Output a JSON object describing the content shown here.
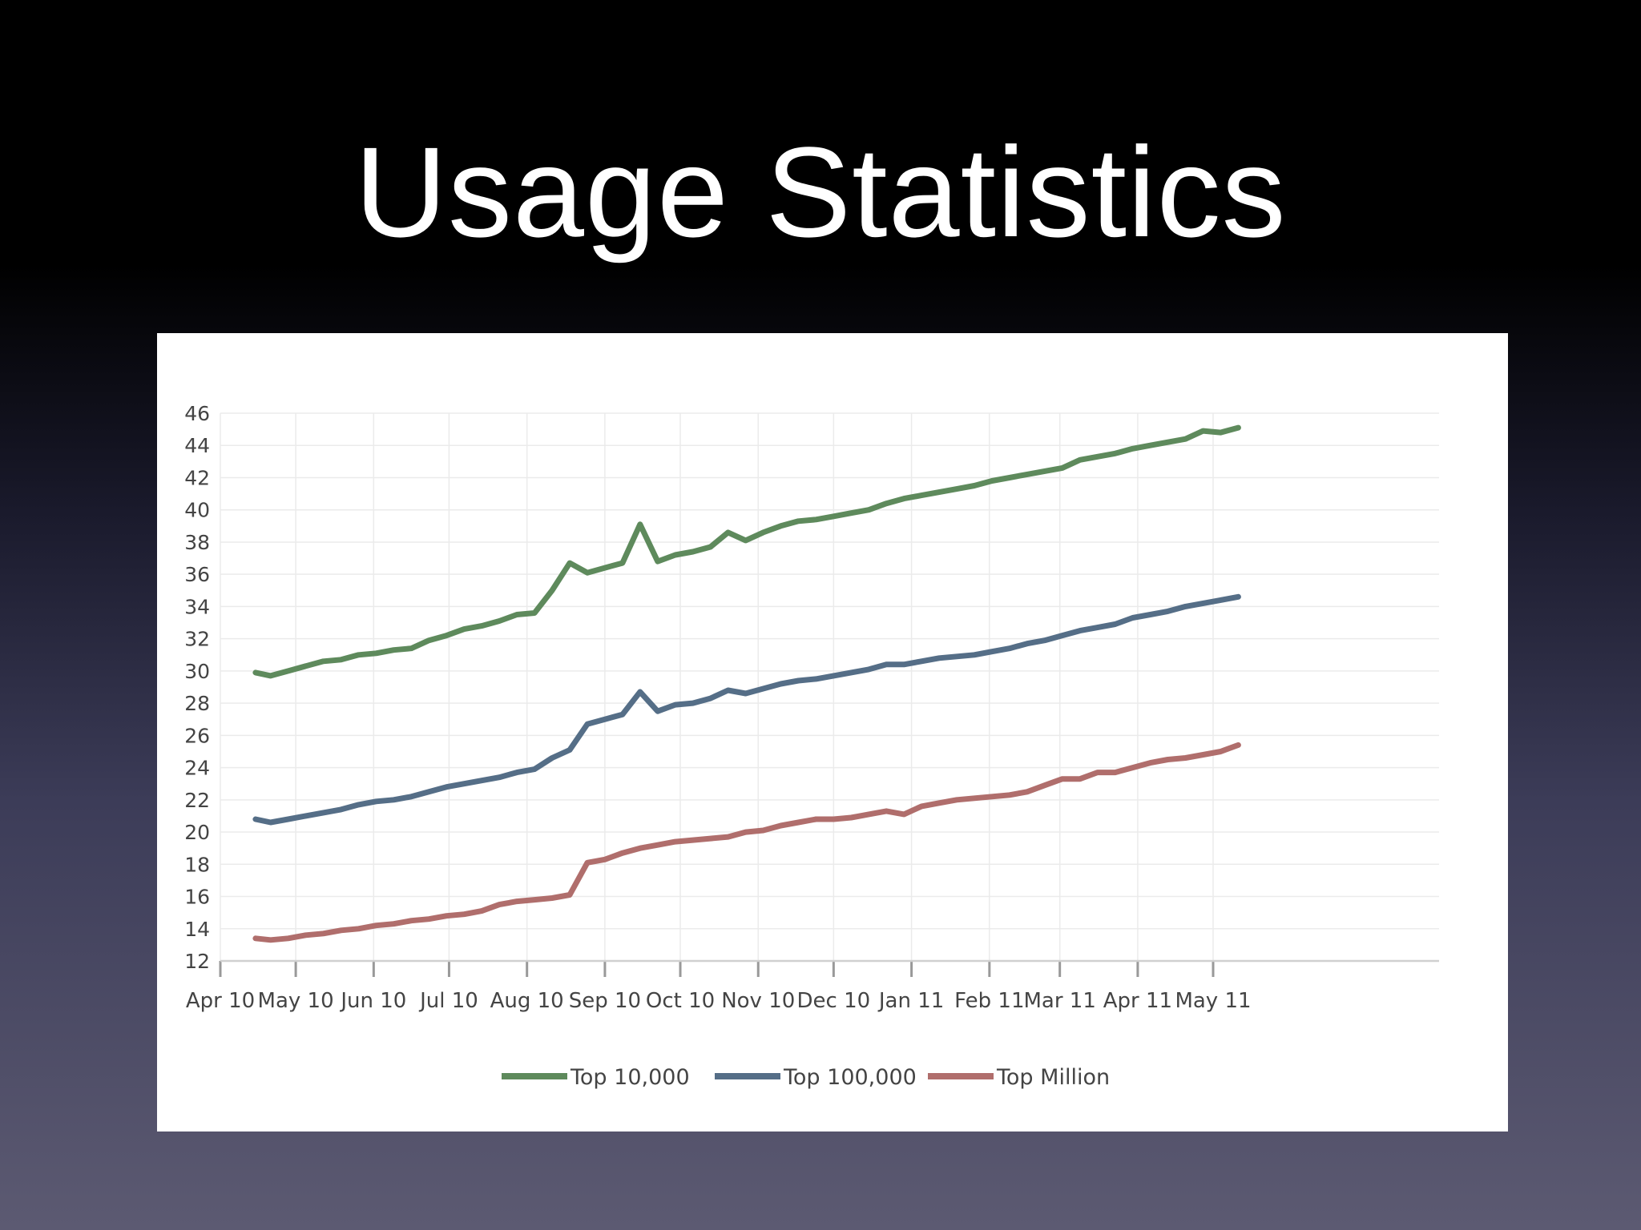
{
  "slide": {
    "title": "Usage Statistics"
  },
  "chart_data": {
    "type": "line",
    "title": "",
    "xlabel": "",
    "ylabel": "",
    "ylim": [
      12,
      46
    ],
    "yticks": [
      12,
      14,
      16,
      18,
      20,
      22,
      24,
      26,
      28,
      30,
      32,
      34,
      36,
      38,
      40,
      42,
      44,
      46
    ],
    "x_tick_labels": [
      "Apr 10",
      "May 10",
      "Jun 10",
      "Jul 10",
      "Aug 10",
      "Sep 10",
      "Oct 10",
      "Nov 10",
      "Dec 10",
      "Jan 11",
      "Feb 11",
      "Mar 11",
      "Apr 11",
      "May 11"
    ],
    "grid": true,
    "legend_position": "bottom",
    "x": [
      "2010-04-15",
      "2010-04-21",
      "2010-04-28",
      "2010-05-05",
      "2010-05-12",
      "2010-05-19",
      "2010-05-26",
      "2010-06-02",
      "2010-06-09",
      "2010-06-16",
      "2010-06-23",
      "2010-06-30",
      "2010-07-07",
      "2010-07-14",
      "2010-07-21",
      "2010-07-28",
      "2010-08-04",
      "2010-08-11",
      "2010-08-18",
      "2010-08-25",
      "2010-09-01",
      "2010-09-08",
      "2010-09-15",
      "2010-09-22",
      "2010-09-29",
      "2010-10-06",
      "2010-10-13",
      "2010-10-20",
      "2010-10-27",
      "2010-11-03",
      "2010-11-10",
      "2010-11-17",
      "2010-11-24",
      "2010-12-01",
      "2010-12-08",
      "2010-12-15",
      "2010-12-22",
      "2010-12-29",
      "2011-01-05",
      "2011-01-12",
      "2011-01-19",
      "2011-01-26",
      "2011-02-02",
      "2011-02-09",
      "2011-02-16",
      "2011-02-23",
      "2011-03-02",
      "2011-03-09",
      "2011-03-16",
      "2011-03-23",
      "2011-03-30",
      "2011-04-06",
      "2011-04-13",
      "2011-04-20",
      "2011-04-27",
      "2011-05-04",
      "2011-05-11"
    ],
    "series": [
      {
        "name": "Top 10,000",
        "color": "#5e8a5c",
        "values": [
          29.9,
          29.7,
          30.0,
          30.3,
          30.6,
          30.7,
          31.0,
          31.1,
          31.3,
          31.4,
          31.9,
          32.2,
          32.6,
          32.8,
          33.1,
          33.5,
          33.6,
          35.0,
          36.7,
          36.1,
          36.4,
          36.7,
          39.1,
          36.8,
          37.2,
          37.4,
          37.7,
          38.6,
          38.1,
          38.6,
          39.0,
          39.3,
          39.4,
          39.6,
          39.8,
          40.0,
          40.4,
          40.7,
          40.9,
          41.1,
          41.3,
          41.5,
          41.8,
          42.0,
          42.2,
          42.4,
          42.6,
          43.1,
          43.3,
          43.5,
          43.8,
          44.0,
          44.2,
          44.4,
          44.9,
          44.8,
          45.1
        ]
      },
      {
        "name": "Top 100,000",
        "color": "#556e87",
        "values": [
          20.8,
          20.6,
          20.8,
          21.0,
          21.2,
          21.4,
          21.7,
          21.9,
          22.0,
          22.2,
          22.5,
          22.8,
          23.0,
          23.2,
          23.4,
          23.7,
          23.9,
          24.6,
          25.1,
          26.7,
          27.0,
          27.3,
          28.7,
          27.5,
          27.9,
          28.0,
          28.3,
          28.8,
          28.6,
          28.9,
          29.2,
          29.4,
          29.5,
          29.7,
          29.9,
          30.1,
          30.4,
          30.4,
          30.6,
          30.8,
          30.9,
          31.0,
          31.2,
          31.4,
          31.7,
          31.9,
          32.2,
          32.5,
          32.7,
          32.9,
          33.3,
          33.5,
          33.7,
          34.0,
          34.2,
          34.4,
          34.6
        ]
      },
      {
        "name": "Top Million",
        "color": "#b06e6c",
        "values": [
          13.4,
          13.3,
          13.4,
          13.6,
          13.7,
          13.9,
          14.0,
          14.2,
          14.3,
          14.5,
          14.6,
          14.8,
          14.9,
          15.1,
          15.5,
          15.7,
          15.8,
          15.9,
          16.1,
          18.1,
          18.3,
          18.7,
          19.0,
          19.2,
          19.4,
          19.5,
          19.6,
          19.7,
          20.0,
          20.1,
          20.4,
          20.6,
          20.8,
          20.8,
          20.9,
          21.1,
          21.3,
          21.1,
          21.6,
          21.8,
          22.0,
          22.1,
          22.2,
          22.3,
          22.5,
          22.9,
          23.3,
          23.3,
          23.7,
          23.7,
          24.0,
          24.3,
          24.5,
          24.6,
          24.8,
          25.0,
          25.4
        ]
      }
    ]
  }
}
